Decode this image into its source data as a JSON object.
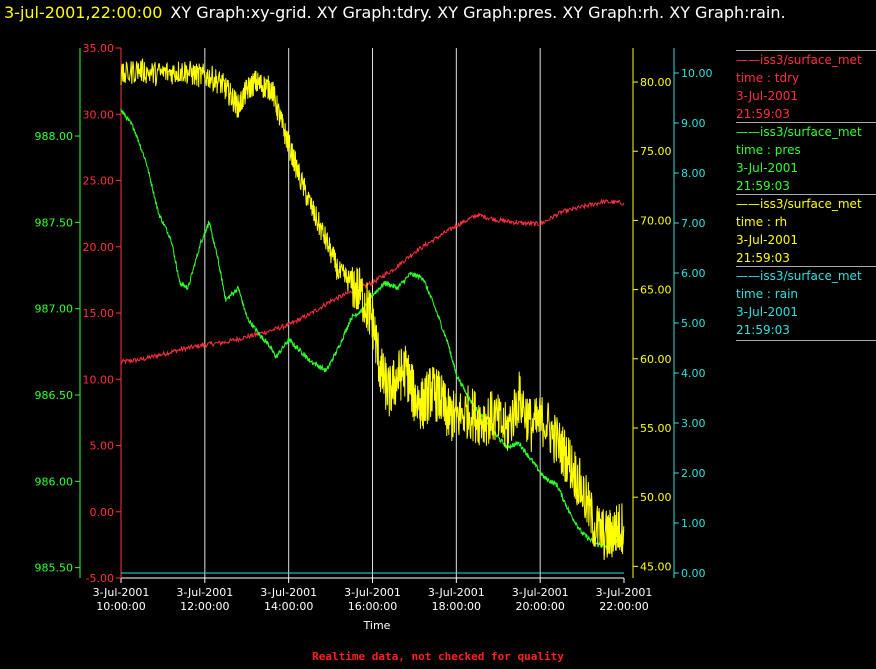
{
  "header": {
    "datetime": "3-jul-2001,22:00:00",
    "titles": "XY Graph:xy-grid.  XY Graph:tdry.  XY Graph:pres.  XY Graph:rh.  XY Graph:rain."
  },
  "footer": {
    "notice": "Realtime data, not checked for quality"
  },
  "legend": [
    {
      "source": "iss3/surface_met",
      "label": "time : tdry",
      "date": "3-Jul-2001",
      "time": "21:59:03",
      "color": "#ff3040"
    },
    {
      "source": "iss3/surface_met",
      "label": "time : pres",
      "date": "3-Jul-2001",
      "time": "21:59:03",
      "color": "#30ff30"
    },
    {
      "source": "iss3/surface_met",
      "label": "time : rh",
      "date": "3-Jul-2001",
      "time": "21:59:03",
      "color": "#ffff00"
    },
    {
      "source": "iss3/surface_met",
      "label": "time : rain",
      "date": "3-Jul-2001",
      "time": "21:59:03",
      "color": "#30e0e0"
    }
  ],
  "chart_data": {
    "type": "line",
    "xlabel": "Time",
    "xlim": [
      "3-Jul-2001 10:00:00",
      "3-Jul-2001 22:00:00"
    ],
    "x_ticks": [
      {
        "date": "3-Jul-2001",
        "time": "10:00:00"
      },
      {
        "date": "3-Jul-2001",
        "time": "12:00:00"
      },
      {
        "date": "3-Jul-2001",
        "time": "14:00:00"
      },
      {
        "date": "3-Jul-2001",
        "time": "16:00:00"
      },
      {
        "date": "3-Jul-2001",
        "time": "18:00:00"
      },
      {
        "date": "3-Jul-2001",
        "time": "20:00:00"
      },
      {
        "date": "3-Jul-2001",
        "time": "22:00:00"
      }
    ],
    "grid": "vertical",
    "axes": [
      {
        "id": "tdry",
        "side": "left-inner",
        "color": "#ff3040",
        "ylim": [
          -5,
          35
        ],
        "ticks": [
          "-5.00",
          "0.00",
          "5.00",
          "10.00",
          "15.00",
          "20.00",
          "25.00",
          "30.00",
          "35.00"
        ]
      },
      {
        "id": "pres",
        "side": "left-outer",
        "color": "#30ff30",
        "ylim": [
          985.44,
          988.51
        ],
        "ticks": [
          "985.50",
          "986.00",
          "986.50",
          "987.00",
          "987.50",
          "988.00"
        ]
      },
      {
        "id": "rh",
        "side": "right-inner",
        "color": "#ffff00",
        "ylim": [
          44.16,
          82.46
        ],
        "ticks": [
          "45.00",
          "50.00",
          "55.00",
          "60.00",
          "65.00",
          "70.00",
          "75.00",
          "80.00"
        ]
      },
      {
        "id": "rain",
        "side": "right-outer",
        "color": "#30e0e0",
        "ylim": [
          -0.1,
          10.5
        ],
        "ticks": [
          "0.00",
          "1.00",
          "2.00",
          "3.00",
          "4.00",
          "5.00",
          "6.00",
          "7.00",
          "8.00",
          "9.00",
          "10.00"
        ]
      }
    ],
    "series": [
      {
        "name": "time : tdry",
        "axis": "tdry",
        "color": "#ff3040",
        "x": [
          10.0,
          10.5,
          11.0,
          11.5,
          12.0,
          12.5,
          13.0,
          13.5,
          14.0,
          14.5,
          15.0,
          15.5,
          16.0,
          16.5,
          17.0,
          17.5,
          18.0,
          18.5,
          19.0,
          19.5,
          20.0,
          20.5,
          21.0,
          21.5,
          22.0
        ],
        "y": [
          11.3,
          11.5,
          11.9,
          12.3,
          12.6,
          12.8,
          13.2,
          13.6,
          14.1,
          14.9,
          15.9,
          16.6,
          17.3,
          18.3,
          19.6,
          20.6,
          21.6,
          22.4,
          22.0,
          21.8,
          21.7,
          22.6,
          23.0,
          23.4,
          23.3
        ]
      },
      {
        "name": "time : pres",
        "axis": "pres",
        "color": "#30ff30",
        "x": [
          10.0,
          10.3,
          10.6,
          10.9,
          11.2,
          11.4,
          11.6,
          11.9,
          12.1,
          12.3,
          12.5,
          12.8,
          13.0,
          13.3,
          13.5,
          13.7,
          14.0,
          14.3,
          14.5,
          14.9,
          15.2,
          15.5,
          15.8,
          16.0,
          16.3,
          16.6,
          16.9,
          17.2,
          17.5,
          17.8,
          18.0,
          18.3,
          18.6,
          18.9,
          19.2,
          19.5,
          19.8,
          20.1,
          20.4,
          20.7,
          21.0,
          21.3,
          21.6,
          21.8,
          22.0
        ],
        "y": [
          988.15,
          988.05,
          987.85,
          987.55,
          987.4,
          987.15,
          987.12,
          987.38,
          987.5,
          987.3,
          987.05,
          987.12,
          986.95,
          986.85,
          986.8,
          986.72,
          986.82,
          986.75,
          986.7,
          986.64,
          986.78,
          986.95,
          987.0,
          987.08,
          987.15,
          987.12,
          987.2,
          987.18,
          987.0,
          986.8,
          986.62,
          986.48,
          986.38,
          986.28,
          986.2,
          986.22,
          986.12,
          986.02,
          985.98,
          985.82,
          985.7,
          985.64,
          985.62,
          985.65,
          985.72
        ]
      },
      {
        "name": "time : rh",
        "axis": "rh",
        "color": "#ffff00",
        "x": [
          10.0,
          10.4,
          10.8,
          11.2,
          11.5,
          11.8,
          12.1,
          12.4,
          12.6,
          12.8,
          13.0,
          13.2,
          13.4,
          13.6,
          13.8,
          14.0,
          14.3,
          14.6,
          14.9,
          15.2,
          15.5,
          15.8,
          16.0,
          16.2,
          16.4,
          16.6,
          16.8,
          17.0,
          17.2,
          17.4,
          17.6,
          17.8,
          18.0,
          18.3,
          18.6,
          18.9,
          19.2,
          19.5,
          19.8,
          20.1,
          20.4,
          20.7,
          21.0,
          21.3,
          21.6,
          21.8,
          22.0
        ],
        "y": [
          80.4,
          80.9,
          80.6,
          80.7,
          80.8,
          80.5,
          80.4,
          79.9,
          79.1,
          78.2,
          79.4,
          80.0,
          79.7,
          79.5,
          77.3,
          75.5,
          72.8,
          70.5,
          68.5,
          66.2,
          65.5,
          64.3,
          62.8,
          59.0,
          57.5,
          58.7,
          59.2,
          57.2,
          56.7,
          57.7,
          57.2,
          55.9,
          55.8,
          56.2,
          55.6,
          55.8,
          54.8,
          57.2,
          55.1,
          55.6,
          54.0,
          52.6,
          50.5,
          47.9,
          47.1,
          47.6,
          47.9
        ]
      },
      {
        "name": "time : rain",
        "axis": "rain",
        "color": "#30e0e0",
        "x": [
          10.0,
          22.0
        ],
        "y": [
          0.0,
          0.0
        ]
      }
    ]
  }
}
